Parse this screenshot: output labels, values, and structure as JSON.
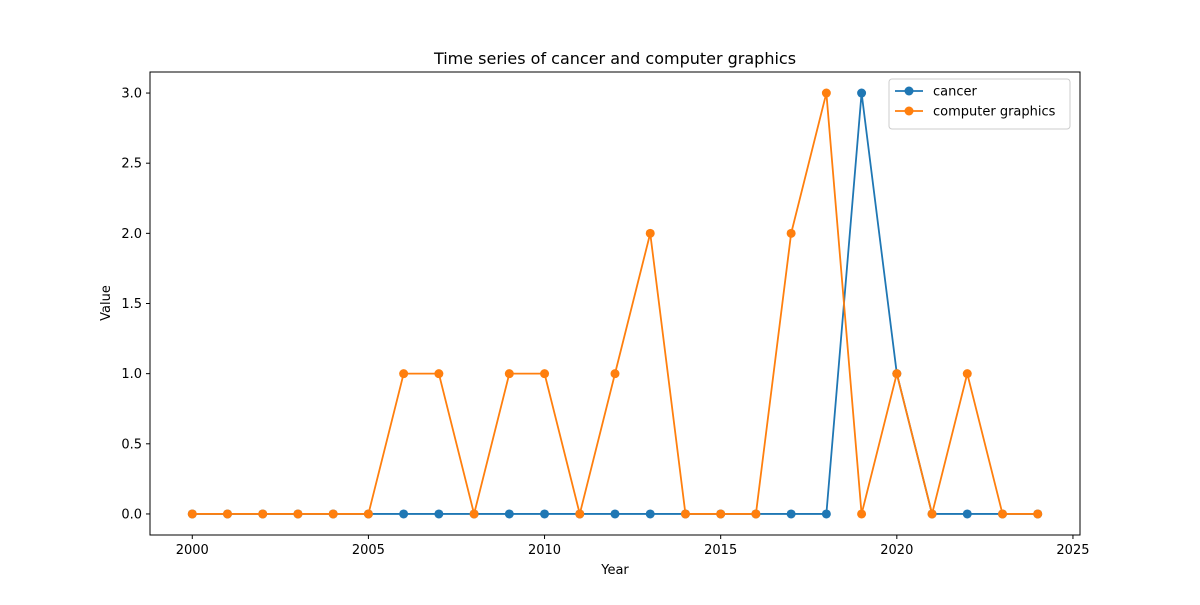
{
  "chart_data": {
    "type": "line",
    "title": "Time series of cancer and computer graphics",
    "xlabel": "Year",
    "ylabel": "Value",
    "xlim": [
      1998.8,
      2025.2
    ],
    "ylim": [
      -0.15,
      3.15
    ],
    "x_ticks": [
      2000,
      2005,
      2010,
      2015,
      2020,
      2025
    ],
    "x_tick_labels": [
      "2000",
      "2005",
      "2010",
      "2015",
      "2020",
      "2025"
    ],
    "y_ticks": [
      0.0,
      0.5,
      1.0,
      1.5,
      2.0,
      2.5,
      3.0
    ],
    "y_tick_labels": [
      "0.0",
      "0.5",
      "1.0",
      "1.5",
      "2.0",
      "2.5",
      "3.0"
    ],
    "grid": false,
    "legend_position": "top-right",
    "x": [
      2000,
      2001,
      2002,
      2003,
      2004,
      2005,
      2006,
      2007,
      2008,
      2009,
      2010,
      2011,
      2012,
      2013,
      2014,
      2015,
      2016,
      2017,
      2018,
      2019,
      2020,
      2021,
      2022,
      2023,
      2024
    ],
    "series": [
      {
        "name": "cancer",
        "color": "#1f77b4",
        "values": [
          0,
          0,
          0,
          0,
          0,
          0,
          0,
          0,
          0,
          0,
          0,
          0,
          0,
          0,
          0,
          0,
          0,
          0,
          0,
          3,
          1,
          0,
          0,
          0,
          0
        ]
      },
      {
        "name": "computer graphics",
        "color": "#ff7f0e",
        "values": [
          0,
          0,
          0,
          0,
          0,
          0,
          1,
          1,
          0,
          1,
          1,
          0,
          1,
          2,
          0,
          0,
          0,
          2,
          3,
          0,
          1,
          0,
          1,
          0,
          0
        ]
      }
    ]
  }
}
